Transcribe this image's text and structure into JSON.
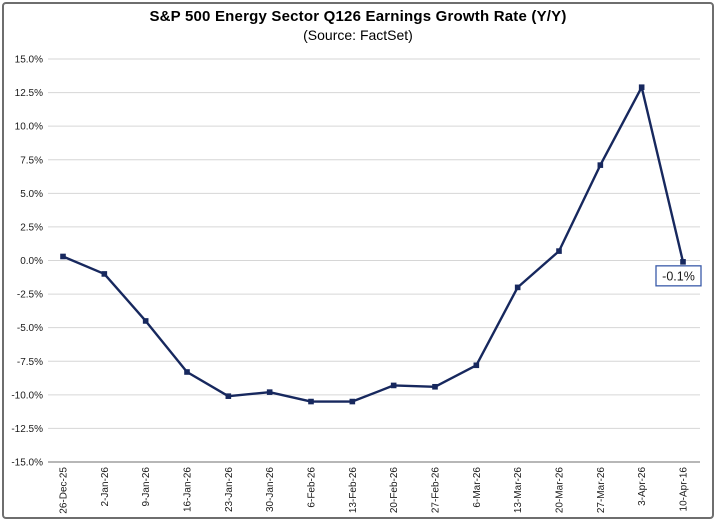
{
  "header": {
    "title": "S&P 500 Energy Sector Q126 Earnings Growth Rate (Y/Y)",
    "subtitle": "(Source: FactSet)"
  },
  "chart_data": {
    "type": "line",
    "title": "S&P 500 Energy Sector Q126 Earnings Growth Rate (Y/Y)",
    "subtitle": "(Source: FactSet)",
    "categories": [
      "26-Dec-25",
      "2-Jan-26",
      "9-Jan-26",
      "16-Jan-26",
      "23-Jan-26",
      "30-Jan-26",
      "6-Feb-26",
      "13-Feb-26",
      "20-Feb-26",
      "27-Feb-26",
      "6-Mar-26",
      "13-Mar-26",
      "20-Mar-26",
      "27-Mar-26",
      "3-Apr-26",
      "10-Apr-16"
    ],
    "values": [
      0.3,
      -1.0,
      -4.5,
      -8.3,
      -10.1,
      -9.8,
      -10.5,
      -10.5,
      -9.3,
      -9.4,
      -7.8,
      -2.0,
      0.7,
      7.1,
      12.9,
      -0.1
    ],
    "ylim": [
      -15,
      15
    ],
    "y_tick_step": 2.5,
    "y_tick_labels": [
      "15.0%",
      "12.5%",
      "10.0%",
      "7.5%",
      "5.0%",
      "2.5%",
      "0.0%",
      "-2.5%",
      "-5.0%",
      "-7.5%",
      "-10.0%",
      "-12.5%",
      "-15.0%"
    ],
    "y_tick_values": [
      15,
      12.5,
      10,
      7.5,
      5,
      2.5,
      0,
      -2.5,
      -5,
      -7.5,
      -10,
      -12.5,
      -15
    ],
    "grid": true,
    "legend": "none",
    "annotation": {
      "label": "-0.1%",
      "point_index": 15
    },
    "colors": {
      "line": "#17285E",
      "marker": "#17285E",
      "gridline": "#D6D6D6",
      "axis_line": "#8C8C8C",
      "tick_text": "#1A1A1A",
      "annotation_border": "#3A5BA9",
      "annotation_bg": "#FFFFFF",
      "annotation_text": "#000000"
    }
  }
}
